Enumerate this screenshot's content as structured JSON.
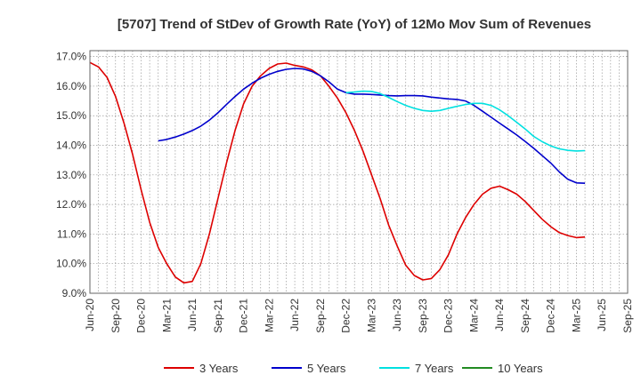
{
  "chart_data": {
    "type": "line",
    "title": "[5707]  Trend of StDev of Growth Rate (YoY) of 12Mo Mov Sum of Revenues",
    "xlabel": "",
    "ylabel": "",
    "ylim": [
      9.0,
      17.2
    ],
    "yticks": [
      9.0,
      10.0,
      11.0,
      12.0,
      13.0,
      14.0,
      15.0,
      16.0,
      17.0
    ],
    "ytick_labels": [
      "9.0%",
      "10.0%",
      "11.0%",
      "12.0%",
      "13.0%",
      "14.0%",
      "15.0%",
      "16.0%",
      "17.0%"
    ],
    "xlim": [
      0,
      63
    ],
    "xticks": [
      0,
      3,
      6,
      9,
      12,
      15,
      18,
      21,
      24,
      27,
      30,
      33,
      36,
      39,
      42,
      45,
      48,
      51,
      54,
      57,
      60,
      63
    ],
    "xtick_labels": [
      "Jun-20",
      "Sep-20",
      "Dec-20",
      "Mar-21",
      "Jun-21",
      "Sep-21",
      "Dec-21",
      "Mar-22",
      "Jun-22",
      "Sep-22",
      "Dec-22",
      "Mar-23",
      "Jun-23",
      "Sep-23",
      "Dec-23",
      "Mar-24",
      "Jun-24",
      "Sep-24",
      "Dec-24",
      "Mar-25",
      "Jun-25",
      "Sep-25"
    ],
    "grid": true,
    "legend_position": "bottom",
    "series": [
      {
        "name": "3 Years",
        "color": "#dd0000",
        "points": [
          [
            0,
            16.8
          ],
          [
            1,
            16.65
          ],
          [
            2,
            16.3
          ],
          [
            3,
            15.65
          ],
          [
            4,
            14.75
          ],
          [
            5,
            13.7
          ],
          [
            6,
            12.5
          ],
          [
            7,
            11.4
          ],
          [
            8,
            10.55
          ],
          [
            9,
            10.0
          ],
          [
            10,
            9.55
          ],
          [
            11,
            9.35
          ],
          [
            12,
            9.4
          ],
          [
            13,
            10.0
          ],
          [
            14,
            11.0
          ],
          [
            15,
            12.2
          ],
          [
            16,
            13.4
          ],
          [
            17,
            14.5
          ],
          [
            18,
            15.4
          ],
          [
            19,
            16.0
          ],
          [
            20,
            16.35
          ],
          [
            21,
            16.6
          ],
          [
            22,
            16.75
          ],
          [
            23,
            16.78
          ],
          [
            24,
            16.7
          ],
          [
            25,
            16.65
          ],
          [
            26,
            16.55
          ],
          [
            27,
            16.35
          ],
          [
            28,
            16.0
          ],
          [
            29,
            15.6
          ],
          [
            30,
            15.1
          ],
          [
            31,
            14.5
          ],
          [
            32,
            13.8
          ],
          [
            33,
            13.0
          ],
          [
            34,
            12.2
          ],
          [
            35,
            11.3
          ],
          [
            36,
            10.6
          ],
          [
            37,
            9.95
          ],
          [
            38,
            9.6
          ],
          [
            39,
            9.45
          ],
          [
            40,
            9.5
          ],
          [
            41,
            9.8
          ],
          [
            42,
            10.3
          ],
          [
            43,
            11.0
          ],
          [
            44,
            11.55
          ],
          [
            45,
            12.0
          ],
          [
            46,
            12.35
          ],
          [
            47,
            12.55
          ],
          [
            48,
            12.62
          ],
          [
            49,
            12.5
          ],
          [
            50,
            12.35
          ],
          [
            51,
            12.1
          ],
          [
            52,
            11.8
          ],
          [
            53,
            11.5
          ],
          [
            54,
            11.25
          ],
          [
            55,
            11.05
          ],
          [
            56,
            10.95
          ],
          [
            57,
            10.88
          ],
          [
            58,
            10.9
          ]
        ]
      },
      {
        "name": "5 Years",
        "color": "#0000cc",
        "points": [
          [
            8,
            14.15
          ],
          [
            9,
            14.2
          ],
          [
            10,
            14.28
          ],
          [
            11,
            14.38
          ],
          [
            12,
            14.5
          ],
          [
            13,
            14.65
          ],
          [
            14,
            14.85
          ],
          [
            15,
            15.1
          ],
          [
            16,
            15.38
          ],
          [
            17,
            15.65
          ],
          [
            18,
            15.9
          ],
          [
            19,
            16.1
          ],
          [
            20,
            16.27
          ],
          [
            21,
            16.4
          ],
          [
            22,
            16.5
          ],
          [
            23,
            16.57
          ],
          [
            24,
            16.6
          ],
          [
            25,
            16.58
          ],
          [
            26,
            16.5
          ],
          [
            27,
            16.35
          ],
          [
            28,
            16.15
          ],
          [
            29,
            15.9
          ],
          [
            30,
            15.78
          ],
          [
            31,
            15.73
          ],
          [
            32,
            15.73
          ],
          [
            33,
            15.72
          ],
          [
            34,
            15.7
          ],
          [
            35,
            15.68
          ],
          [
            36,
            15.67
          ],
          [
            37,
            15.68
          ],
          [
            38,
            15.68
          ],
          [
            39,
            15.67
          ],
          [
            40,
            15.63
          ],
          [
            41,
            15.6
          ],
          [
            42,
            15.57
          ],
          [
            43,
            15.55
          ],
          [
            44,
            15.5
          ],
          [
            45,
            15.35
          ],
          [
            46,
            15.15
          ],
          [
            47,
            14.95
          ],
          [
            48,
            14.75
          ],
          [
            49,
            14.55
          ],
          [
            50,
            14.35
          ],
          [
            51,
            14.13
          ],
          [
            52,
            13.9
          ],
          [
            53,
            13.65
          ],
          [
            54,
            13.4
          ],
          [
            55,
            13.1
          ],
          [
            56,
            12.85
          ],
          [
            57,
            12.73
          ],
          [
            58,
            12.72
          ]
        ]
      },
      {
        "name": "7 Years",
        "color": "#00e0e0",
        "points": [
          [
            30,
            15.78
          ],
          [
            31,
            15.8
          ],
          [
            32,
            15.83
          ],
          [
            33,
            15.82
          ],
          [
            34,
            15.75
          ],
          [
            35,
            15.62
          ],
          [
            36,
            15.48
          ],
          [
            37,
            15.35
          ],
          [
            38,
            15.25
          ],
          [
            39,
            15.18
          ],
          [
            40,
            15.15
          ],
          [
            41,
            15.18
          ],
          [
            42,
            15.25
          ],
          [
            43,
            15.32
          ],
          [
            44,
            15.38
          ],
          [
            45,
            15.42
          ],
          [
            46,
            15.42
          ],
          [
            47,
            15.35
          ],
          [
            48,
            15.2
          ],
          [
            49,
            15.0
          ],
          [
            50,
            14.78
          ],
          [
            51,
            14.55
          ],
          [
            52,
            14.3
          ],
          [
            53,
            14.12
          ],
          [
            54,
            13.98
          ],
          [
            55,
            13.88
          ],
          [
            56,
            13.83
          ],
          [
            57,
            13.81
          ],
          [
            58,
            13.82
          ]
        ]
      },
      {
        "name": "10 Years",
        "color": "#228b22",
        "points": []
      }
    ]
  }
}
